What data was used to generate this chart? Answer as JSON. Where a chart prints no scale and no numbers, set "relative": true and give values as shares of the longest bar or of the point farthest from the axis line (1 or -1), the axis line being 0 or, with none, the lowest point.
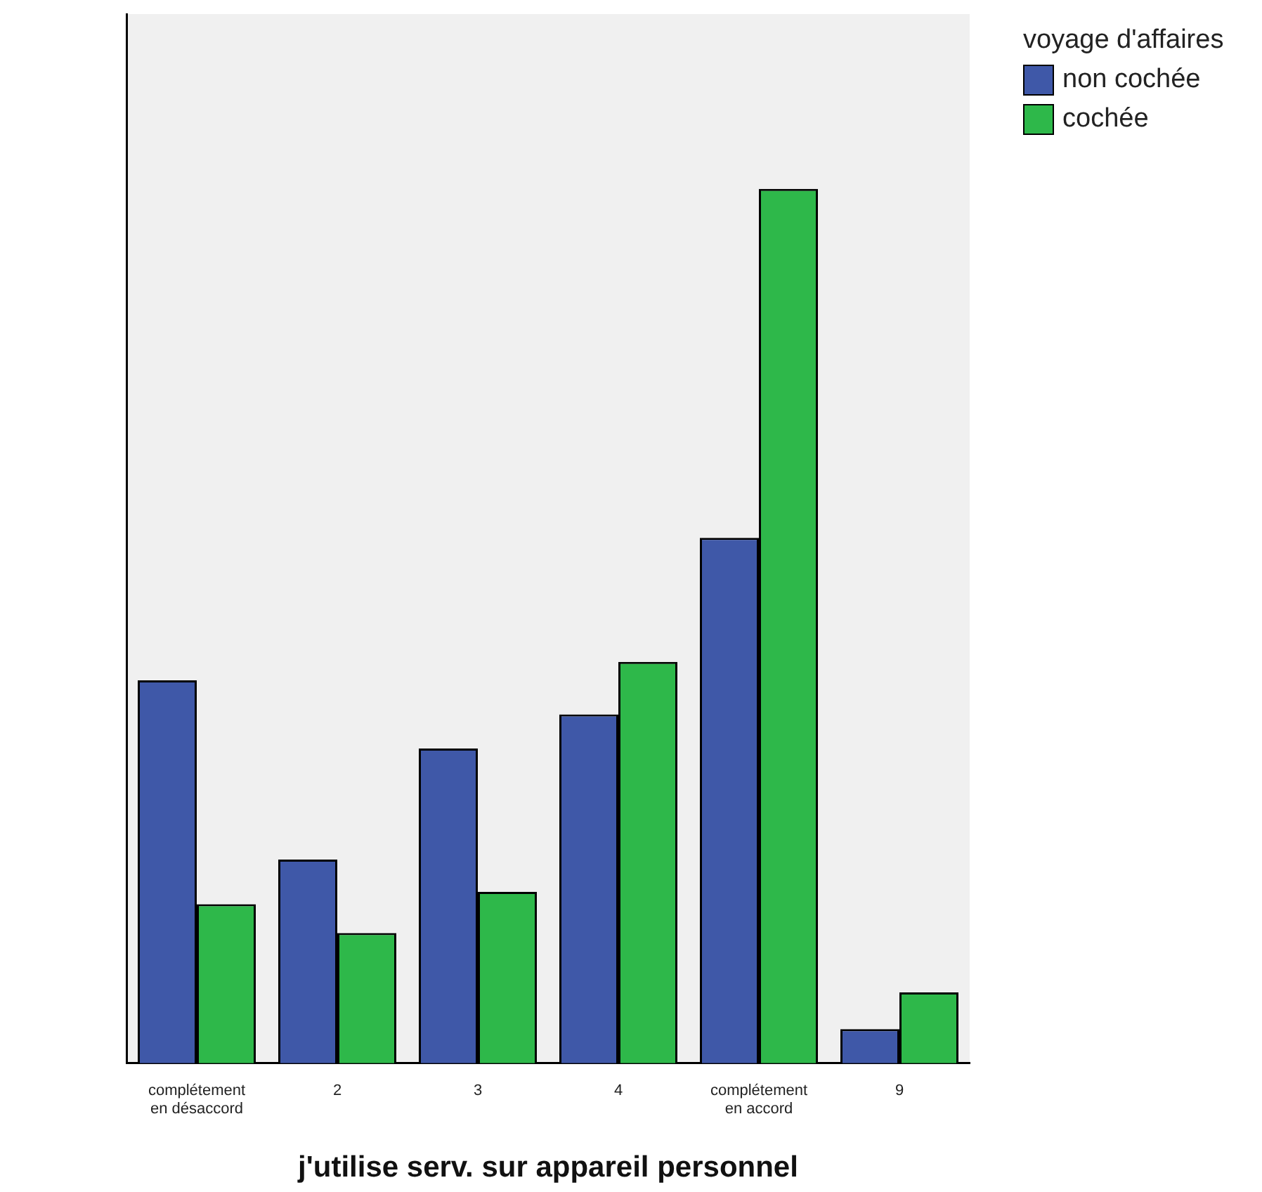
{
  "chart_data": {
    "type": "bar",
    "xlabel": "j'utilise serv. sur appareil personnel",
    "legend_title": "voyage d'affaires",
    "legend": "top right",
    "relative": true,
    "categories": [
      [
        "complétement",
        "en désaccord"
      ],
      "2",
      "3",
      "4",
      [
        "complétement",
        "en accord"
      ],
      "9"
    ],
    "series": [
      {
        "name": "non cochée",
        "color": "#3f58a8",
        "values": [
          0.438,
          0.233,
          0.36,
          0.399,
          0.601,
          0.039
        ]
      },
      {
        "name": "cochée",
        "color": "#2eb84a",
        "values": [
          0.182,
          0.149,
          0.196,
          0.459,
          1,
          0.081
        ]
      }
    ],
    "grid": false
  }
}
